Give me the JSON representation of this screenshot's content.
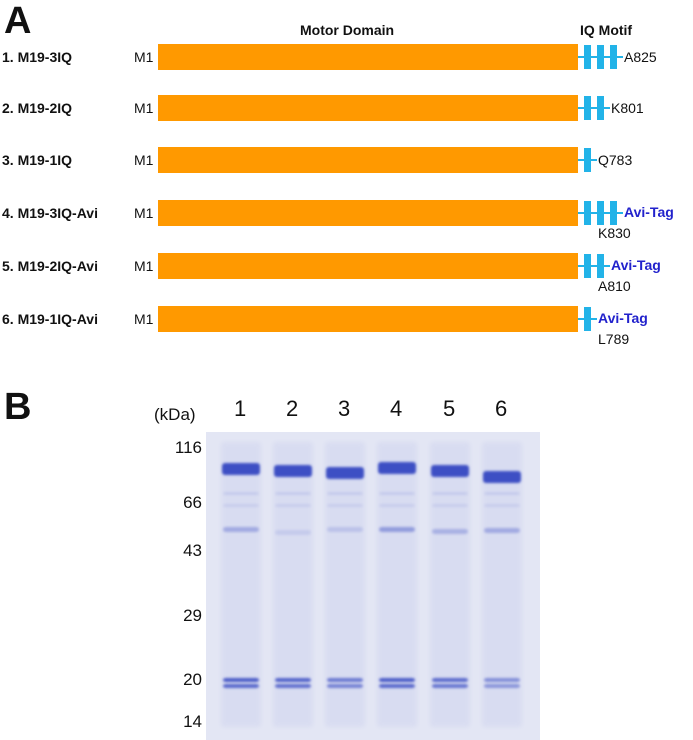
{
  "panelA": {
    "letter": "A",
    "motor_header": "Motor Domain",
    "iq_header": "IQ Motif",
    "constructs": [
      {
        "name": "1. M19-3IQ",
        "start": "M1",
        "iq_count": 3,
        "avi": false,
        "end": "A825"
      },
      {
        "name": "2. M19-2IQ",
        "start": "M1",
        "iq_count": 2,
        "avi": false,
        "end": "K801"
      },
      {
        "name": "3. M19-1IQ",
        "start": "M1",
        "iq_count": 1,
        "avi": false,
        "end": "Q783"
      },
      {
        "name": "4. M19-3IQ-Avi",
        "start": "M1",
        "iq_count": 3,
        "avi": true,
        "tag": "Avi-Tag",
        "end": "K830"
      },
      {
        "name": "5. M19-2IQ-Avi",
        "start": "M1",
        "iq_count": 2,
        "avi": true,
        "tag": "Avi-Tag",
        "end": "A810"
      },
      {
        "name": "6. M19-1IQ-Avi",
        "start": "M1",
        "iq_count": 1,
        "avi": true,
        "tag": "Avi-Tag",
        "end": "L789"
      }
    ],
    "colors": {
      "motor": "#ff9900",
      "iq": "#22b3e8",
      "avi": "#2222cc"
    }
  },
  "panelB": {
    "letter": "B",
    "unit": "(kDa)",
    "lanes": [
      "1",
      "2",
      "3",
      "4",
      "5",
      "6"
    ],
    "markers": [
      "116",
      "66",
      "43",
      "29",
      "20",
      "14"
    ],
    "colors": {
      "band": "#3d4fc4",
      "gel": "#e3e6f4"
    }
  }
}
